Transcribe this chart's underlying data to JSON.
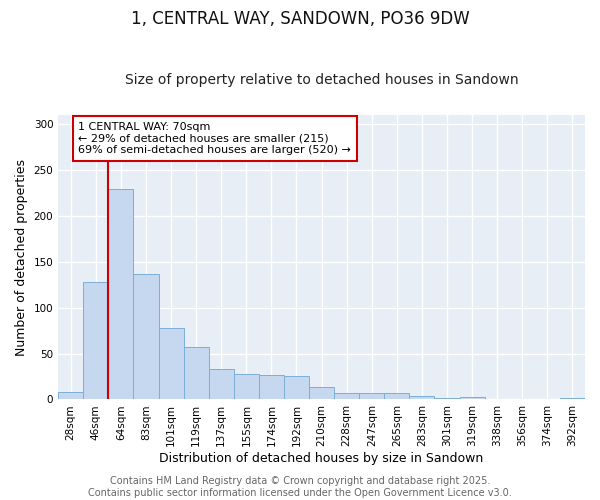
{
  "title": "1, CENTRAL WAY, SANDOWN, PO36 9DW",
  "subtitle": "Size of property relative to detached houses in Sandown",
  "xlabel": "Distribution of detached houses by size in Sandown",
  "ylabel": "Number of detached properties",
  "bar_color": "#c5d8f0",
  "bar_edge_color": "#7bafd4",
  "categories": [
    "28sqm",
    "46sqm",
    "64sqm",
    "83sqm",
    "101sqm",
    "119sqm",
    "137sqm",
    "155sqm",
    "174sqm",
    "192sqm",
    "210sqm",
    "228sqm",
    "247sqm",
    "265sqm",
    "283sqm",
    "301sqm",
    "319sqm",
    "338sqm",
    "356sqm",
    "374sqm",
    "392sqm"
  ],
  "values": [
    8,
    128,
    229,
    136,
    78,
    57,
    33,
    28,
    27,
    26,
    14,
    7,
    7,
    7,
    4,
    2,
    3,
    0,
    1,
    0,
    2
  ],
  "ylim": [
    0,
    310
  ],
  "yticks": [
    0,
    50,
    100,
    150,
    200,
    250,
    300
  ],
  "vline_x_index": 1.5,
  "vline_color": "#cc0000",
  "annotation_text_line1": "1 CENTRAL WAY: 70sqm",
  "annotation_text_line2": "← 29% of detached houses are smaller (215)",
  "annotation_text_line3": "69% of semi-detached houses are larger (520) →",
  "footer_text": "Contains HM Land Registry data © Crown copyright and database right 2025.\nContains public sector information licensed under the Open Government Licence v3.0.",
  "background_color": "#ffffff",
  "plot_bg_color": "#e8eef5",
  "grid_color": "#ffffff",
  "title_fontsize": 12,
  "subtitle_fontsize": 10,
  "axis_label_fontsize": 9,
  "tick_fontsize": 7.5,
  "annotation_fontsize": 8,
  "footer_fontsize": 7
}
